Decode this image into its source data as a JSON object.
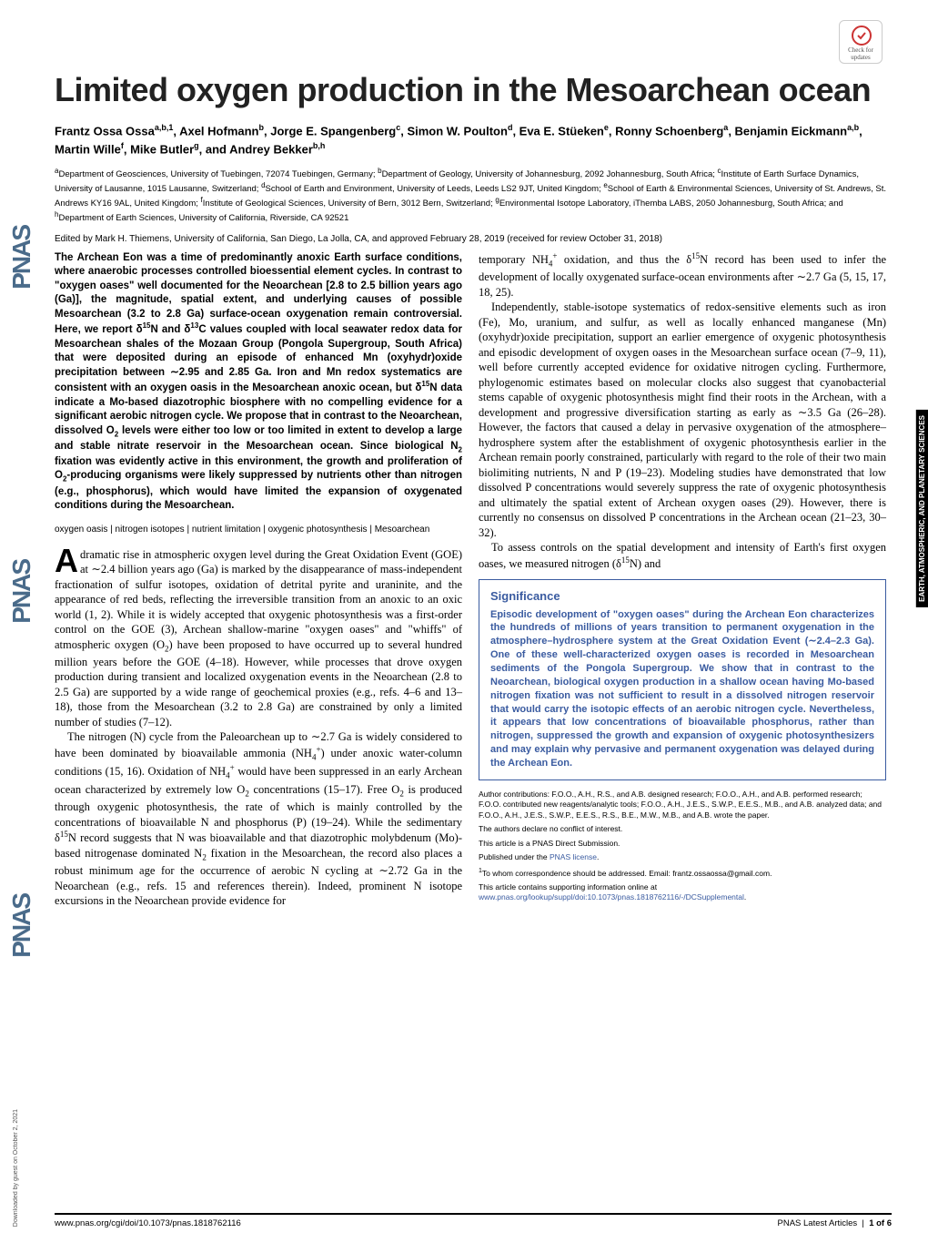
{
  "journal_sidebar": "PNAS",
  "check_updates_label": "Check for updates",
  "title": "Limited oxygen production in the Mesoarchean ocean",
  "authors_html": "Frantz Ossa Ossa<sup>a,b,1</sup>, Axel Hofmann<sup>b</sup>, Jorge E. Spangenberg<sup>c</sup>, Simon W. Poulton<sup>d</sup>, Eva E. Stüeken<sup>e</sup>, Ronny Schoenberg<sup>a</sup>, Benjamin Eickmann<sup>a,b</sup>, Martin Wille<sup>f</sup>, Mike Butler<sup>g</sup>, and Andrey Bekker<sup>b,h</sup>",
  "affiliations_html": "<sup>a</sup>Department of Geosciences, University of Tuebingen, 72074 Tuebingen, Germany; <sup>b</sup>Department of Geology, University of Johannesburg, 2092 Johannesburg, South Africa; <sup>c</sup>Institute of Earth Surface Dynamics, University of Lausanne, 1015 Lausanne, Switzerland; <sup>d</sup>School of Earth and Environment, University of Leeds, Leeds LS2 9JT, United Kingdom; <sup>e</sup>School of Earth & Environmental Sciences, University of St. Andrews, St. Andrews KY16 9AL, United Kingdom; <sup>f</sup>Institute of Geological Sciences, University of Bern, 3012 Bern, Switzerland; <sup>g</sup>Environmental Isotope Laboratory, iThemba LABS, 2050 Johannesburg, South Africa; and <sup>h</sup>Department of Earth Sciences, University of California, Riverside, CA 92521",
  "edited_by": "Edited by Mark H. Thiemens, University of California, San Diego, La Jolla, CA, and approved February 28, 2019 (received for review October 31, 2018)",
  "abstract_html": "The Archean Eon was a time of predominantly anoxic Earth surface conditions, where anaerobic processes controlled bioessential element cycles. In contrast to \"oxygen oases\" well documented for the Neoarchean [2.8 to 2.5 billion years ago (Ga)], the magnitude, spatial extent, and underlying causes of possible Mesoarchean (3.2 to 2.8 Ga) surface-ocean oxygenation remain controversial. Here, we report δ<sup>15</sup>N and δ<sup>13</sup>C values coupled with local seawater redox data for Mesoarchean shales of the Mozaan Group (Pongola Supergroup, South Africa) that were deposited during an episode of enhanced Mn (oxyhydr)oxide precipitation between ∼2.95 and 2.85 Ga. Iron and Mn redox systematics are consistent with an oxygen oasis in the Mesoarchean anoxic ocean, but δ<sup>15</sup>N data indicate a Mo-based diazotrophic biosphere with no compelling evidence for a significant aerobic nitrogen cycle. We propose that in contrast to the Neoarchean, dissolved O<sub>2</sub> levels were either too low or too limited in extent to develop a large and stable nitrate reservoir in the Mesoarchean ocean. Since biological N<sub>2</sub> fixation was evidently active in this environment, the growth and proliferation of O<sub>2</sub>-producing organisms were likely suppressed by nutrients other than nitrogen (e.g., phosphorus), which would have limited the expansion of oxygenated conditions during the Mesoarchean.",
  "keywords": "oxygen oasis | nitrogen isotopes | nutrient limitation | oxygenic photosynthesis | Mesoarchean",
  "body_col1_p1_html": "dramatic rise in atmospheric oxygen level during the Great Oxidation Event (GOE) at ∼2.4 billion years ago (Ga) is marked by the disappearance of mass-independent fractionation of sulfur isotopes, oxidation of detrital pyrite and uraninite, and the appearance of red beds, reflecting the irreversible transition from an anoxic to an oxic world (1, 2). While it is widely accepted that oxygenic photosynthesis was a first-order control on the GOE (3), Archean shallow-marine \"oxygen oases\" and \"whiffs\" of atmospheric oxygen (O<sub>2</sub>) have been proposed to have occurred up to several hundred million years before the GOE (4–18). However, while processes that drove oxygen production during transient and localized oxygenation events in the Neoarchean (2.8 to 2.5 Ga) are supported by a wide range of geochemical proxies (e.g., refs. 4–6 and 13–18), those from the Mesoarchean (3.2 to 2.8 Ga) are constrained by only a limited number of studies (7–12).",
  "body_col1_p2_html": "The nitrogen (N) cycle from the Paleoarchean up to ∼2.7 Ga is widely considered to have been dominated by bioavailable ammonia (NH<sub>4</sub><sup>+</sup>) under anoxic water-column conditions (15, 16). Oxidation of NH<sub>4</sub><sup>+</sup> would have been suppressed in an early Archean ocean characterized by extremely low O<sub>2</sub> concentrations (15–17). Free O<sub>2</sub> is produced through oxygenic photosynthesis, the rate of which is mainly controlled by the concentrations of bioavailable N and phosphorus (P) (19–24). While the sedimentary δ<sup>15</sup>N record suggests that N was bioavailable and that diazotrophic molybdenum (Mo)-based nitrogenase dominated N<sub>2</sub> fixation in the Mesoarchean, the record also places a robust minimum age for the occurrence of aerobic N cycling at ∼2.72 Ga in the Neoarchean (e.g., refs. 15 and references therein). Indeed, prominent N isotope excursions in the Neoarchean provide evidence for",
  "body_col2_p1_html": "temporary NH<sub>4</sub><sup>+</sup> oxidation, and thus the δ<sup>15</sup>N record has been used to infer the development of locally oxygenated surface-ocean environments after ∼2.7 Ga (5, 15, 17, 18, 25).",
  "body_col2_p2_html": "Independently, stable-isotope systematics of redox-sensitive elements such as iron (Fe), Mo, uranium, and sulfur, as well as locally enhanced manganese (Mn) (oxyhydr)oxide precipitation, support an earlier emergence of oxygenic photosynthesis and episodic development of oxygen oases in the Mesoarchean surface ocean (7–9, 11), well before currently accepted evidence for oxidative nitrogen cycling. Furthermore, phylogenomic estimates based on molecular clocks also suggest that cyanobacterial stems capable of oxygenic photosynthesis might find their roots in the Archean, with a development and progressive diversification starting as early as ∼3.5 Ga (26–28). However, the factors that caused a delay in pervasive oxygenation of the atmosphere–hydrosphere system after the establishment of oxygenic photosynthesis earlier in the Archean remain poorly constrained, particularly with regard to the role of their two main biolimiting nutrients, N and P (19–23). Modeling studies have demonstrated that low dissolved P concentrations would severely suppress the rate of oxygenic photosynthesis and ultimately the spatial extent of Archean oxygen oases (29). However, there is currently no consensus on dissolved P concentrations in the Archean ocean (21–23, 30–32).",
  "body_col2_p3_html": "To assess controls on the spatial development and intensity of Earth's first oxygen oases, we measured nitrogen (δ<sup>15</sup>N) and",
  "significance_title": "Significance",
  "significance_text": "Episodic development of \"oxygen oases\" during the Archean Eon characterizes the hundreds of millions of years transition to permanent oxygenation in the atmosphere–hydrosphere system at the Great Oxidation Event (∼2.4–2.3 Ga). One of these well-characterized oxygen oases is recorded in Mesoarchean sediments of the Pongola Supergroup. We show that in contrast to the Neoarchean, biological oxygen production in a shallow ocean having Mo-based nitrogen fixation was not sufficient to result in a dissolved nitrogen reservoir that would carry the isotopic effects of an aerobic nitrogen cycle. Nevertheless, it appears that low concentrations of bioavailable phosphorus, rather than nitrogen, suppressed the growth and expansion of oxygenic photosynthesizers and may explain why pervasive and permanent oxygenation was delayed during the Archean Eon.",
  "author_contributions": "Author contributions: F.O.O., A.H., R.S., and A.B. designed research; F.O.O., A.H., and A.B. performed research; F.O.O. contributed new reagents/analytic tools; F.O.O., A.H., J.E.S., S.W.P., E.E.S., M.B., and A.B. analyzed data; and F.O.O., A.H., J.E.S., S.W.P., E.E.S., R.S., B.E., M.W., M.B., and A.B. wrote the paper.",
  "conflict": "The authors declare no conflict of interest.",
  "submission": "This article is a PNAS Direct Submission.",
  "license_prefix": "Published under the ",
  "license_link": "PNAS license",
  "correspondence_html": "<sup>1</sup>To whom correspondence should be addressed. Email: frantz.ossaossa@gmail.com.",
  "supplement_prefix": "This article contains supporting information online at ",
  "supplement_link": "www.pnas.org/lookup/suppl/doi:10.1073/pnas.1818762116/-/DCSupplemental",
  "footer_left": "www.pnas.org/cgi/doi/10.1073/pnas.1818762116",
  "footer_right_label": "PNAS Latest Articles",
  "footer_right_pages": "1 of 6",
  "side_label": "EARTH, ATMOSPHERIC, AND PLANETARY SCIENCES",
  "download_note": "Downloaded by guest on October 2, 2021",
  "colors": {
    "pnas_blue": "#4a6b8a",
    "link_blue": "#3a5ba0",
    "sig_border": "#3a5ba0",
    "text": "#000000",
    "bg": "#ffffff"
  }
}
